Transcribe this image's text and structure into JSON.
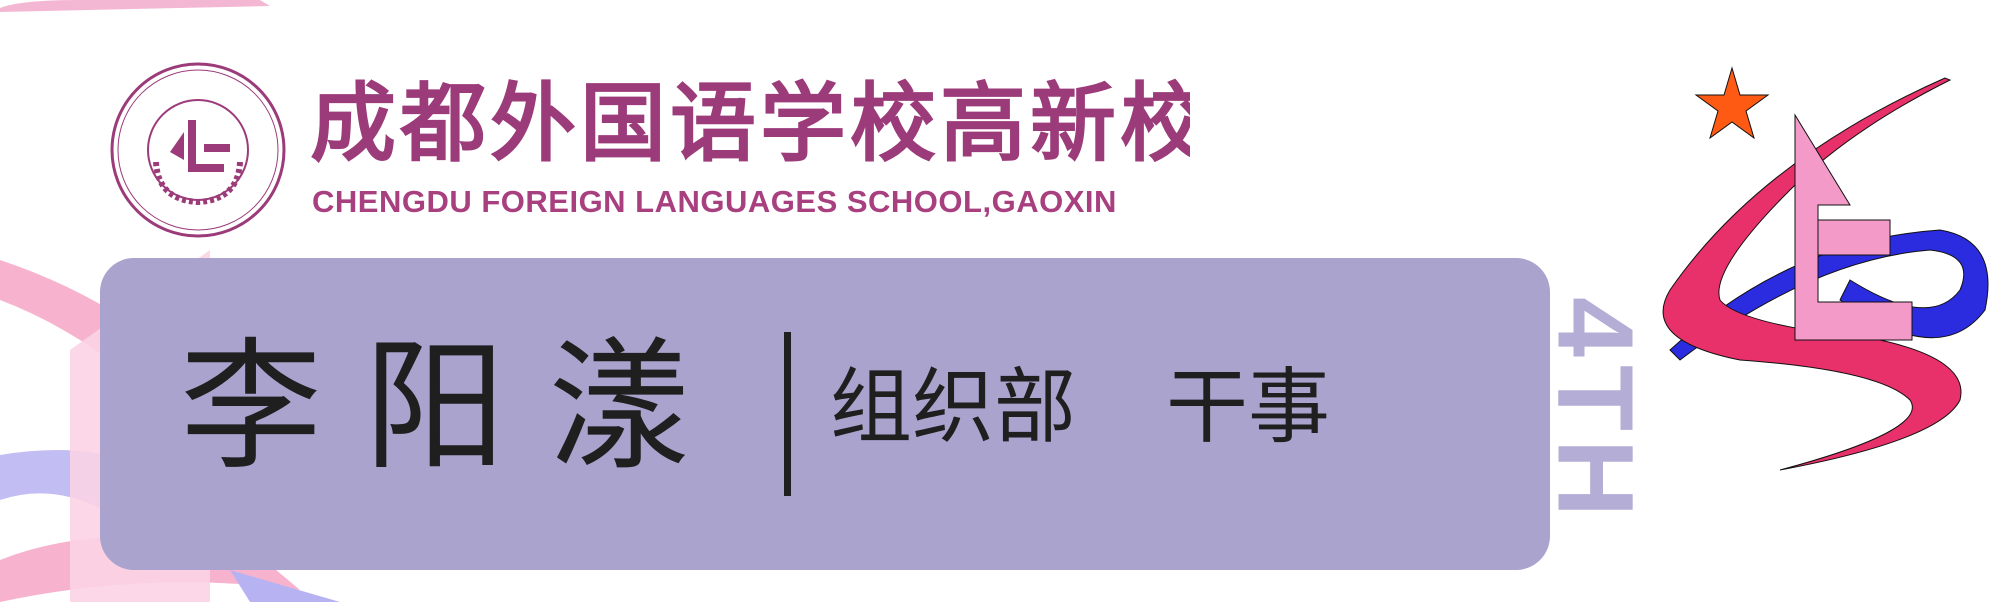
{
  "school": {
    "name_zh": "成都外国语学校高新校区",
    "name_en": "CHENGDU FOREIGN LANGUAGES SCHOOL,GAOXIN",
    "seal_text": "CHENGDU FOREIGN LANGUAGES SCHOOL,GAOXIN"
  },
  "badge": {
    "name": "李阳漾",
    "department": "组织部",
    "position": "干事",
    "edition": "4TH"
  },
  "colors": {
    "brand_purple": "#9c3b7a",
    "card": "#a9a3ce",
    "edition": "#b4aed6",
    "ribbon_red": "#e8306a",
    "ribbon_blue": "#2b2bdf",
    "logo_pink": "#f49ac8",
    "star": "#ff5a14"
  }
}
